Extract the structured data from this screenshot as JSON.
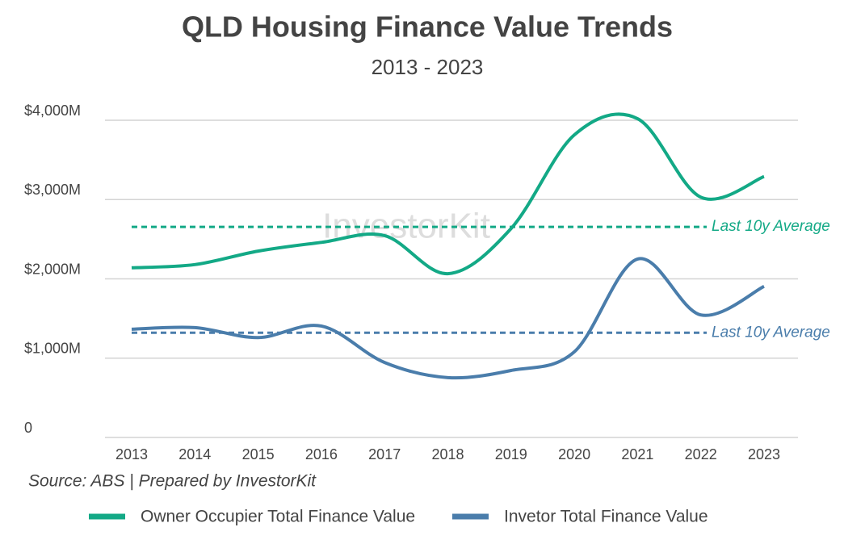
{
  "chart_data": {
    "type": "line",
    "title": "QLD Housing Finance Value Trends",
    "subtitle": "2013 - 2023",
    "source": "Source: ABS | Prepared by InvestorKit",
    "watermark": "InvestorKit",
    "categories": [
      "2013",
      "2014",
      "2015",
      "2016",
      "2017",
      "2018",
      "2019",
      "2020",
      "2021",
      "2022",
      "2023"
    ],
    "series": [
      {
        "name": "Owner Occupier Total Finance Value",
        "color": "#13a986",
        "values": [
          2140,
          2180,
          2350,
          2460,
          2545,
          2065,
          2635,
          3815,
          4020,
          3030,
          3290
        ],
        "average": 2655,
        "average_label": "Last 10y Average"
      },
      {
        "name": "Invetor Total Finance Value",
        "color": "#4a7dab",
        "values": [
          1365,
          1385,
          1260,
          1405,
          945,
          755,
          845,
          1080,
          2250,
          1545,
          1905
        ],
        "average": 1320,
        "average_label": "Last 10y Average"
      }
    ],
    "ylim": [
      0,
      4000
    ],
    "yticks": [
      0,
      {
        "value": 1000,
        "label": "$1,000M"
      },
      {
        "value": 2000,
        "label": "$2,000M"
      },
      {
        "value": 3000,
        "label": "$3,000M"
      },
      {
        "value": 4000,
        "label": "$4,000M"
      }
    ],
    "grid": true,
    "legend": "bottom"
  }
}
